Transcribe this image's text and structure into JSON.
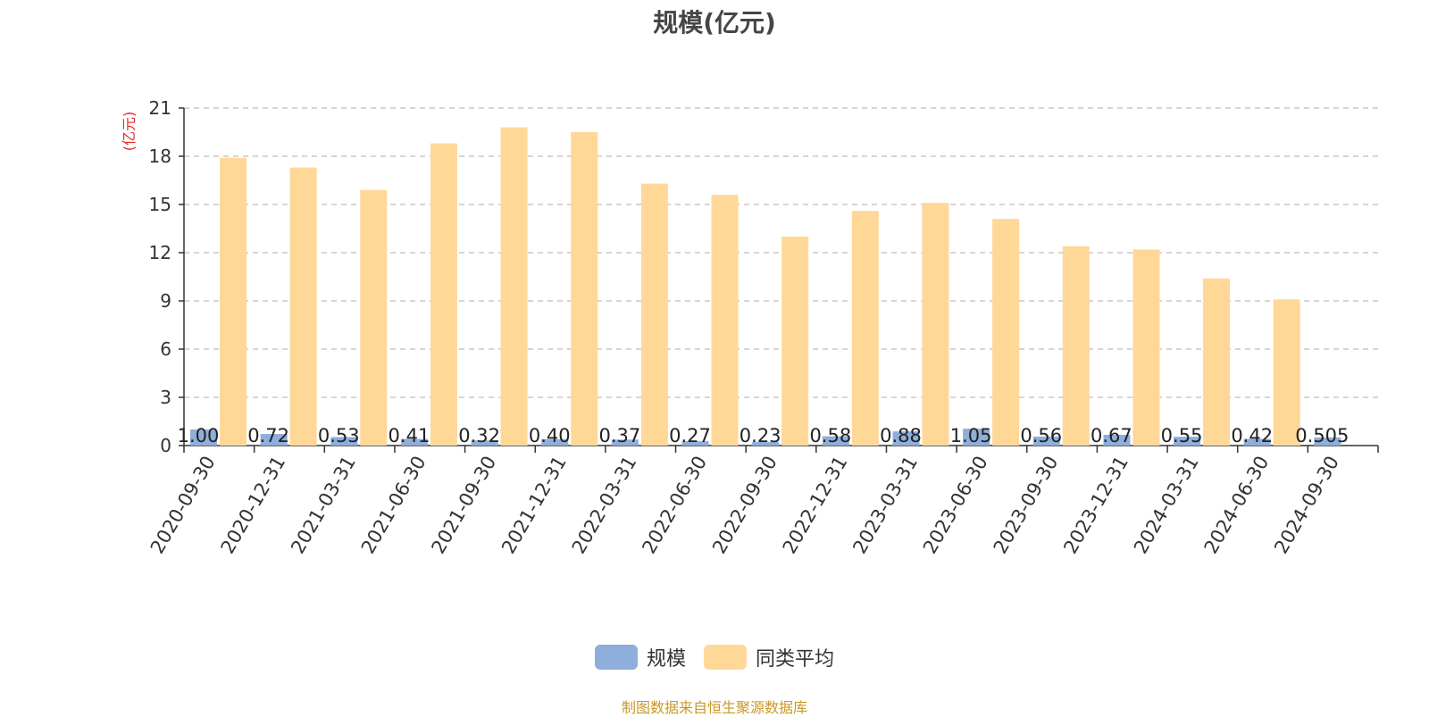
{
  "title": "规模(亿元)",
  "source_note": "制图数据来自恒生聚源数据库",
  "colors": {
    "series_a": "#8eaedb",
    "series_b": "#ffd898",
    "unit_label": "#e8262a",
    "axis": "#333333",
    "grid": "#c8c8c8"
  },
  "chart_data": {
    "type": "bar",
    "title": "规模(亿元)",
    "ylabel": "(亿元)",
    "ylim": [
      0,
      21
    ],
    "yticks": [
      0,
      3,
      6,
      9,
      12,
      15,
      18,
      21
    ],
    "grid": true,
    "legend_position": "bottom",
    "categories": [
      "2020-09-30",
      "2020-12-31",
      "2021-03-31",
      "2021-06-30",
      "2021-09-30",
      "2021-12-31",
      "2022-03-31",
      "2022-06-30",
      "2022-09-30",
      "2022-12-31",
      "2023-03-31",
      "2023-06-30",
      "2023-09-30",
      "2023-12-31",
      "2024-03-31",
      "2024-06-30",
      "2024-09-30"
    ],
    "series": [
      {
        "name": "规模",
        "values": [
          1.0,
          0.72,
          0.53,
          0.41,
          0.32,
          0.4,
          0.37,
          0.27,
          0.23,
          0.58,
          0.88,
          1.05,
          0.56,
          0.67,
          0.55,
          0.42,
          0.505
        ],
        "labels": [
          "1.00",
          "0.72",
          "0.53",
          "0.41",
          "0.32",
          "0.40",
          "0.37",
          "0.27",
          "0.23",
          "0.58",
          "0.88",
          "1.05",
          "0.56",
          "0.67",
          "0.55",
          "0.42",
          "0.505"
        ]
      },
      {
        "name": "同类平均",
        "values": [
          17.9,
          17.3,
          15.9,
          18.8,
          19.8,
          19.5,
          16.3,
          15.6,
          13.0,
          14.6,
          15.1,
          14.1,
          12.4,
          12.2,
          10.4,
          9.1,
          null
        ]
      }
    ]
  }
}
